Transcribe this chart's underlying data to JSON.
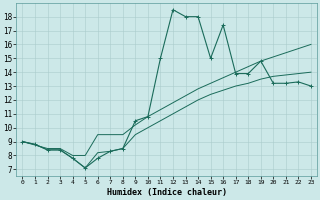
{
  "xlabel": "Humidex (Indice chaleur)",
  "background_color": "#cce8e8",
  "line_color": "#1a6b5a",
  "grid_color": "#aacccc",
  "xlim": [
    -0.5,
    23.5
  ],
  "ylim": [
    6.5,
    19.0
  ],
  "xticks": [
    0,
    1,
    2,
    3,
    4,
    5,
    6,
    7,
    8,
    9,
    10,
    11,
    12,
    13,
    14,
    15,
    16,
    17,
    18,
    19,
    20,
    21,
    22,
    23
  ],
  "yticks": [
    7,
    8,
    9,
    10,
    11,
    12,
    13,
    14,
    15,
    16,
    17,
    18
  ],
  "line1_x": [
    0,
    1,
    2,
    3,
    4,
    5,
    6,
    7,
    8,
    9,
    10,
    11,
    12,
    13,
    14,
    15,
    16,
    17,
    18,
    19,
    20,
    21,
    22,
    23
  ],
  "line1_y": [
    9.0,
    8.8,
    8.4,
    8.4,
    7.8,
    7.1,
    7.8,
    8.3,
    8.5,
    10.5,
    10.8,
    15.0,
    18.5,
    18.0,
    18.0,
    15.0,
    17.4,
    13.9,
    13.9,
    14.8,
    13.2,
    13.2,
    13.3,
    13.0
  ],
  "line2_x": [
    0,
    2,
    3,
    4,
    5,
    6,
    7,
    8,
    9,
    10,
    11,
    12,
    13,
    14,
    15,
    16,
    17,
    18,
    19,
    20,
    21,
    22,
    23
  ],
  "line2_y": [
    9.0,
    8.5,
    8.5,
    8.0,
    8.0,
    9.5,
    9.5,
    9.5,
    10.2,
    10.8,
    11.3,
    11.8,
    12.3,
    12.8,
    13.2,
    13.6,
    14.0,
    14.4,
    14.8,
    15.1,
    15.4,
    15.7,
    16.0
  ],
  "line3_x": [
    0,
    1,
    2,
    3,
    4,
    5,
    6,
    7,
    8,
    9,
    10,
    11,
    12,
    13,
    14,
    15,
    16,
    17,
    18,
    19,
    20,
    21,
    22,
    23
  ],
  "line3_y": [
    9.0,
    8.8,
    8.4,
    8.4,
    7.8,
    7.1,
    8.2,
    8.3,
    8.5,
    9.5,
    10.0,
    10.5,
    11.0,
    11.5,
    12.0,
    12.4,
    12.7,
    13.0,
    13.2,
    13.5,
    13.7,
    13.8,
    13.9,
    14.0
  ],
  "figsize": [
    3.2,
    2.0
  ],
  "dpi": 100
}
